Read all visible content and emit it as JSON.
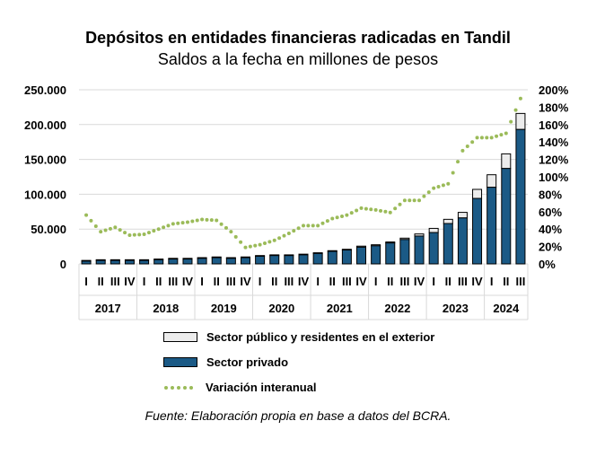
{
  "chart_data": {
    "type": "bar",
    "title": "Depósitos en entidades financieras radicadas en Tandil",
    "subtitle": "Saldos a la fecha en millones de pesos",
    "years": [
      "2017",
      "2018",
      "2019",
      "2020",
      "2021",
      "2022",
      "2023",
      "2024"
    ],
    "quarters": [
      "I",
      "II",
      "III",
      "IV",
      "I",
      "II",
      "III",
      "IV",
      "I",
      "II",
      "III",
      "IV",
      "I",
      "II",
      "III",
      "IV",
      "I",
      "II",
      "III",
      "IV",
      "I",
      "II",
      "III",
      "IV",
      "I",
      "II",
      "III",
      "IV",
      "I",
      "II",
      "III"
    ],
    "ylim": [
      0,
      250000
    ],
    "y2lim": [
      0,
      2
    ],
    "yticks": [
      "0",
      "50.000",
      "100.000",
      "150.000",
      "200.000",
      "250.000"
    ],
    "y2ticks": [
      "0%",
      "20%",
      "40%",
      "60%",
      "80%",
      "100%",
      "120%",
      "140%",
      "160%",
      "180%",
      "200%"
    ],
    "series": [
      {
        "name": "Sector privado",
        "color": "#1b5a86",
        "values": [
          4000,
          5000,
          5000,
          5000,
          5000,
          6000,
          7000,
          7000,
          8000,
          9000,
          8000,
          9000,
          11000,
          12000,
          12000,
          13000,
          15000,
          18000,
          20000,
          24000,
          26000,
          30000,
          35000,
          40000,
          45000,
          58000,
          66000,
          94000,
          110000,
          137000,
          193000
        ]
      },
      {
        "name": "Sector público y residentes en el exterior",
        "color": "#ececec",
        "values": [
          1000,
          1000,
          1000,
          1000,
          1000,
          1000,
          1000,
          1000,
          1000,
          1000,
          1000,
          1000,
          1000,
          1000,
          1000,
          1000,
          1000,
          1000,
          1000,
          1500,
          1500,
          1500,
          2000,
          3000,
          6000,
          6000,
          8000,
          13000,
          18000,
          21000,
          23000
        ]
      },
      {
        "name": "Variación interanual",
        "color": "#9bbb59",
        "type": "line",
        "axis": "right",
        "values": [
          0.56,
          0.37,
          0.42,
          0.33,
          0.34,
          0.4,
          0.46,
          0.48,
          0.51,
          0.5,
          0.37,
          0.19,
          0.22,
          0.27,
          0.35,
          0.44,
          0.44,
          0.52,
          0.56,
          0.64,
          0.62,
          0.59,
          0.73,
          0.73,
          0.87,
          0.92,
          1.3,
          1.45,
          1.45,
          1.5,
          1.9
        ]
      }
    ],
    "legend": [
      "Sector público y residentes en el exterior",
      "Sector privado",
      "Variación interanual"
    ],
    "source": "Fuente: Elaboración propia en base a datos del BCRA."
  }
}
